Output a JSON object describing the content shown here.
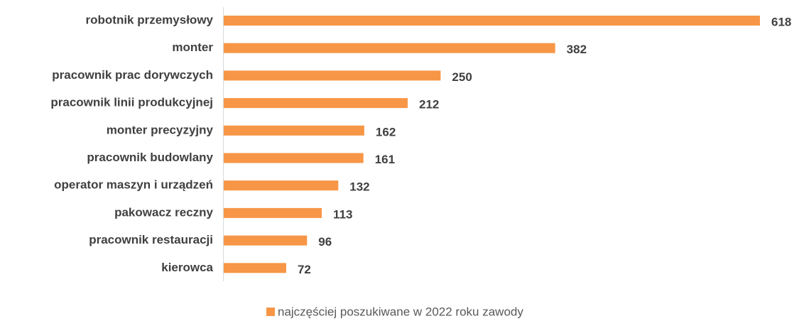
{
  "chart_data": {
    "type": "bar",
    "orientation": "horizontal",
    "categories": [
      "robotnik przemysłowy",
      "monter",
      "pracownik prac dorywczych",
      "pracownik linii produkcyjnej",
      "monter precyzyjny",
      "pracownik budowlany",
      "operator maszyn i urządzeń",
      "pakowacz reczny",
      "pracownik restauracji",
      "kierowca"
    ],
    "series": [
      {
        "name": "najczęściej poszukiwane w 2022 roku zawody",
        "color": "#f79646",
        "values": [
          618,
          382,
          250,
          212,
          162,
          161,
          132,
          113,
          96,
          72
        ]
      }
    ],
    "legend": "bottom"
  }
}
